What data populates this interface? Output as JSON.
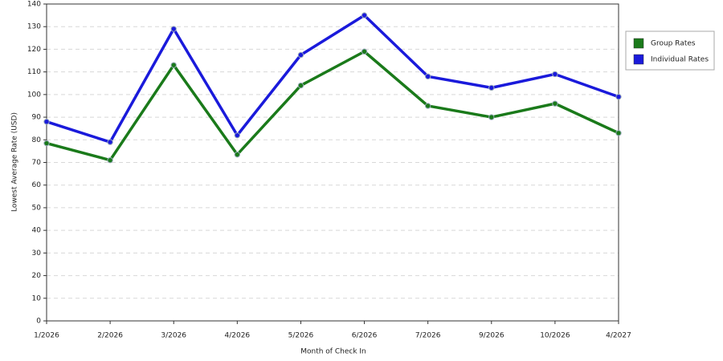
{
  "chart_data": {
    "type": "line",
    "x_label": "Month of Check In",
    "y_label": "Lowest Average Rate (USD)",
    "categories": [
      "1/2026",
      "2/2026",
      "3/2026",
      "4/2026",
      "5/2026",
      "6/2026",
      "7/2026",
      "9/2026",
      "10/2026",
      "4/2027"
    ],
    "series": [
      {
        "name": "Group Rates",
        "color": "#1a7a1a",
        "values": [
          78.5,
          71,
          113,
          73.5,
          104,
          119,
          95,
          90,
          96,
          83
        ]
      },
      {
        "name": "Individual Rates",
        "color": "#1a1adb",
        "values": [
          88,
          79,
          129,
          82,
          117.5,
          135,
          108,
          103,
          109,
          99
        ]
      }
    ],
    "ylim": [
      0,
      140
    ],
    "yticks": [
      0,
      10,
      20,
      30,
      40,
      50,
      60,
      70,
      80,
      90,
      100,
      110,
      120,
      130,
      140
    ],
    "grid": true
  }
}
